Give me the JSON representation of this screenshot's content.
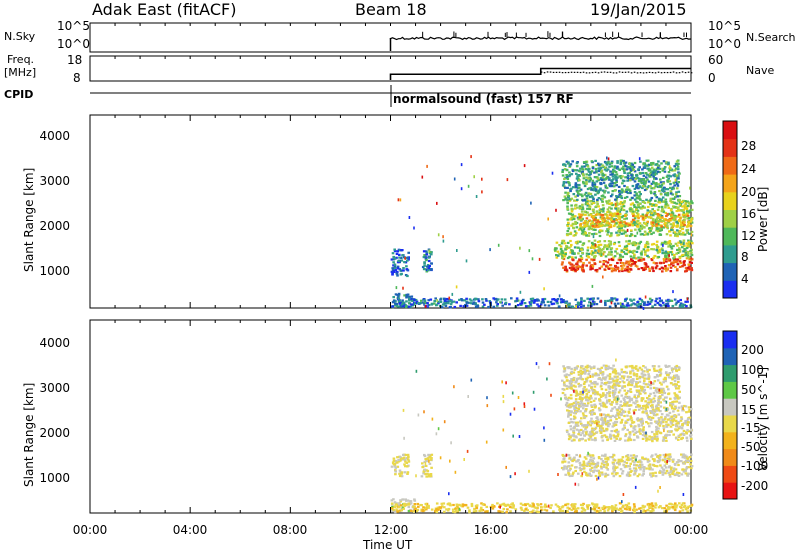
{
  "header": {
    "radar": "Adak East (fitACF)",
    "beam": "Beam 18",
    "date": "19/Jan/2015"
  },
  "top_panels": {
    "nsky_label": "N.Sky",
    "nsky_ticks": [
      "10^5",
      "10^0"
    ],
    "nsearch_label": "N.Search",
    "nsearch_ticks": [
      "10^5",
      "10^0"
    ],
    "freq_label": "Freq.",
    "freq_unit": "[MHz]",
    "freq_ticks": [
      "18",
      "8"
    ],
    "nave_label": "Nave",
    "nave_ticks": [
      "60",
      "0"
    ],
    "cpid_label": "CPID",
    "cpid_text": "normalsound (fast) 157 RF"
  },
  "axes": {
    "xlabel": "Time UT",
    "x_ticks": [
      "00:00",
      "04:00",
      "08:00",
      "12:00",
      "16:00",
      "20:00",
      "00:00"
    ],
    "ylabel": "Slant Range [km]",
    "y_ticks": [
      "4000",
      "3000",
      "2000",
      "1000"
    ]
  },
  "power_colorbar": {
    "label": "Power [dB]",
    "ticks": [
      "28",
      "24",
      "20",
      "16",
      "12",
      "8",
      "4"
    ],
    "colors": [
      "#1a2ef0",
      "#1f63b5",
      "#2f9c8f",
      "#4fb85a",
      "#9fd046",
      "#e8d21c",
      "#f4a41a",
      "#ef6a17",
      "#e43216",
      "#d90f12"
    ]
  },
  "velocity_colorbar": {
    "label": "Velocity [m s^-1]",
    "ticks": [
      "200",
      "100",
      "50",
      "15",
      "-15",
      "-50",
      "-100",
      "-200"
    ],
    "colors": [
      "#e81414",
      "#ef4a14",
      "#f08a18",
      "#f2b21c",
      "#e9d84a",
      "#c8c8c0",
      "#5ec846",
      "#2f9c6e",
      "#1f63b5",
      "#1a2ef0"
    ]
  },
  "chart_data": [
    {
      "type": "line",
      "title": "N.Sky / N.Search",
      "x_range_hours": [
        0,
        24
      ],
      "series": [
        {
          "name": "N.Sky",
          "x": [
            12.0,
            24.0
          ],
          "level": "mid"
        }
      ]
    },
    {
      "type": "line",
      "title": "Freq. / Nave",
      "x_range_hours": [
        0,
        24
      ],
      "series": [
        {
          "name": "Freq. [MHz]",
          "x": [
            12.0,
            18.0,
            18.0,
            24.0
          ],
          "y": [
            10.5,
            10.5,
            13.0,
            13.0
          ]
        },
        {
          "name": "Nave",
          "x": [
            18.0,
            24.0
          ],
          "y": [
            20,
            20
          ]
        }
      ],
      "freq_ylim": [
        8,
        18
      ],
      "nave_ylim": [
        0,
        60
      ]
    },
    {
      "type": "heatmap",
      "title": "Power [dB]",
      "xlabel": "Time UT",
      "ylabel": "Slant Range [km]",
      "x_range_hours": [
        0,
        24
      ],
      "ylim": [
        180,
        4500
      ],
      "zlim": [
        0,
        32
      ],
      "regions": [
        {
          "t0": 12.0,
          "t1": 12.9,
          "r0": 200,
          "r1": 500,
          "value": 8
        },
        {
          "t0": 12.0,
          "t1": 12.7,
          "r0": 900,
          "r1": 1500,
          "value": 4
        },
        {
          "t0": 13.2,
          "t1": 13.6,
          "r0": 1000,
          "r1": 1500,
          "value": 6
        },
        {
          "t0": 12.0,
          "t1": 24.0,
          "r0": 200,
          "r1": 400,
          "value": 5
        },
        {
          "t0": 18.8,
          "t1": 24.0,
          "r0": 1000,
          "r1": 1300,
          "value": 26
        },
        {
          "t0": 18.5,
          "t1": 24.0,
          "r0": 1300,
          "r1": 1700,
          "value": 14
        },
        {
          "t0": 19.0,
          "t1": 24.0,
          "r0": 1800,
          "r1": 2600,
          "value": 14
        },
        {
          "t0": 19.5,
          "t1": 24.0,
          "r0": 2000,
          "r1": 2300,
          "value": 19
        },
        {
          "t0": 18.8,
          "t1": 23.5,
          "r0": 2600,
          "r1": 3500,
          "value": 9
        }
      ]
    },
    {
      "type": "heatmap",
      "title": "Velocity [m s^-1]",
      "xlabel": "Time UT",
      "ylabel": "Slant Range [km]",
      "x_range_hours": [
        0,
        24
      ],
      "ylim": [
        180,
        4500
      ],
      "zlim": [
        -250,
        250
      ],
      "regions": [
        {
          "t0": 12.0,
          "t1": 13.0,
          "r0": 200,
          "r1": 500,
          "value": 25
        },
        {
          "t0": 12.0,
          "t1": 12.7,
          "r0": 1000,
          "r1": 1500,
          "value": -10
        },
        {
          "t0": 13.2,
          "t1": 13.6,
          "r0": 1000,
          "r1": 1500,
          "value": 0
        },
        {
          "t0": 12.0,
          "t1": 24.0,
          "r0": 200,
          "r1": 400,
          "value": -40
        },
        {
          "t0": 18.8,
          "t1": 24.0,
          "r0": 1000,
          "r1": 1500,
          "value": 0
        },
        {
          "t0": 19.0,
          "t1": 24.0,
          "r0": 1800,
          "r1": 2600,
          "value": 0
        },
        {
          "t0": 18.8,
          "t1": 23.5,
          "r0": 2600,
          "r1": 3500,
          "value": 0
        }
      ]
    }
  ]
}
